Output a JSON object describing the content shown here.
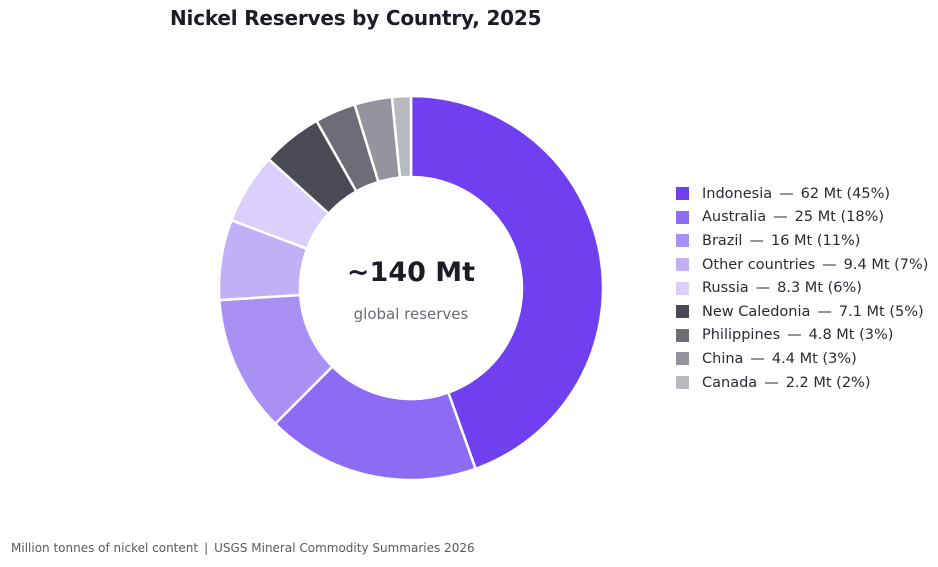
{
  "chart_data": {
    "type": "pie",
    "variant": "donut",
    "title": "Nickel Reserves by Country, 2025",
    "center_value": "~140 Mt",
    "center_label": "global reserves",
    "legend_position": "right",
    "slices": [
      {
        "name": "Indonesia",
        "value_label": "62 Mt",
        "value": 62,
        "percent_label": "(45%)",
        "color": "#7040f0"
      },
      {
        "name": "Australia",
        "value_label": "25 Mt",
        "value": 25,
        "percent_label": "(18%)",
        "color": "#8c6cf3"
      },
      {
        "name": "Brazil",
        "value_label": "16 Mt",
        "value": 16,
        "percent_label": "(11%)",
        "color": "#a890f5"
      },
      {
        "name": "Other countries",
        "value_label": "9.4 Mt",
        "value": 9.4,
        "percent_label": "(7%)",
        "color": "#c2b0f7"
      },
      {
        "name": "Russia",
        "value_label": "8.3 Mt",
        "value": 8.3,
        "percent_label": "(6%)",
        "color": "#dbcffb"
      },
      {
        "name": "New Caledonia",
        "value_label": "7.1 Mt",
        "value": 7.1,
        "percent_label": "(5%)",
        "color": "#4a4a55"
      },
      {
        "name": "Philippines",
        "value_label": "4.8 Mt",
        "value": 4.8,
        "percent_label": "(3%)",
        "color": "#6d6d78"
      },
      {
        "name": "China",
        "value_label": "4.4 Mt",
        "value": 4.4,
        "percent_label": "(3%)",
        "color": "#94949e"
      },
      {
        "name": "Canada",
        "value_label": "2.2 Mt",
        "value": 2.2,
        "percent_label": "(2%)",
        "color": "#b9b9c0"
      }
    ]
  },
  "footer": {
    "unit_note": "Million tonnes of nickel content",
    "separator": "|",
    "source": "USGS Mineral Commodity Summaries 2026"
  }
}
